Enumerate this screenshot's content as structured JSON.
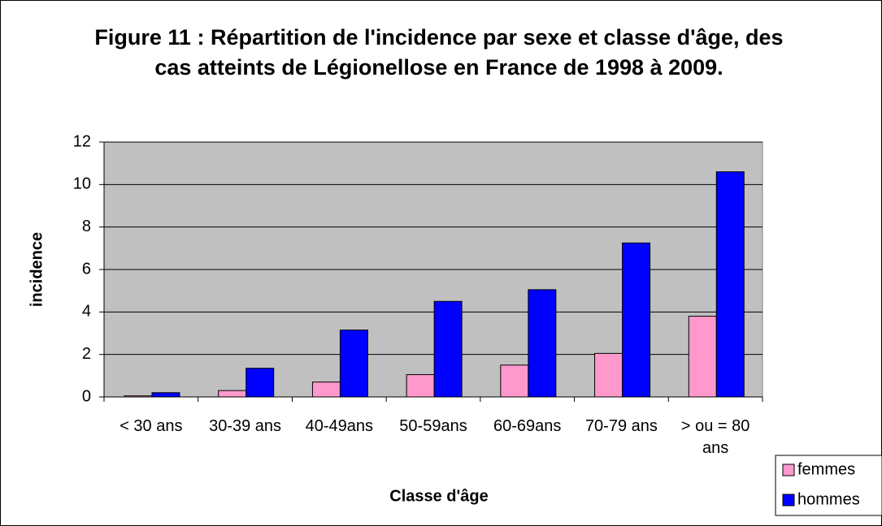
{
  "chart_data": {
    "type": "bar",
    "title": "Figure 11 : Répartition de l'incidence par sexe et classe d'âge, des cas atteints de Légionellose en France de 1998 à 2009.",
    "x_label": "Classe d'âge",
    "y_label": "incidence",
    "categories": [
      "< 30 ans",
      "30-39 ans",
      "40-49ans",
      "50-59ans",
      "60-69ans",
      "70-79 ans",
      "> ou = 80 ans"
    ],
    "series": [
      {
        "name": "femmes",
        "color": "#ff99cc",
        "values": [
          0.05,
          0.3,
          0.7,
          1.05,
          1.5,
          2.05,
          3.8
        ]
      },
      {
        "name": "hommes",
        "color": "#0000ff",
        "values": [
          0.2,
          1.35,
          3.15,
          4.5,
          5.05,
          7.25,
          10.6
        ]
      }
    ],
    "ylim": [
      0,
      12
    ],
    "yticks": [
      0,
      2,
      4,
      6,
      8,
      10,
      12
    ],
    "grid": true,
    "legend": "bottom-right"
  }
}
